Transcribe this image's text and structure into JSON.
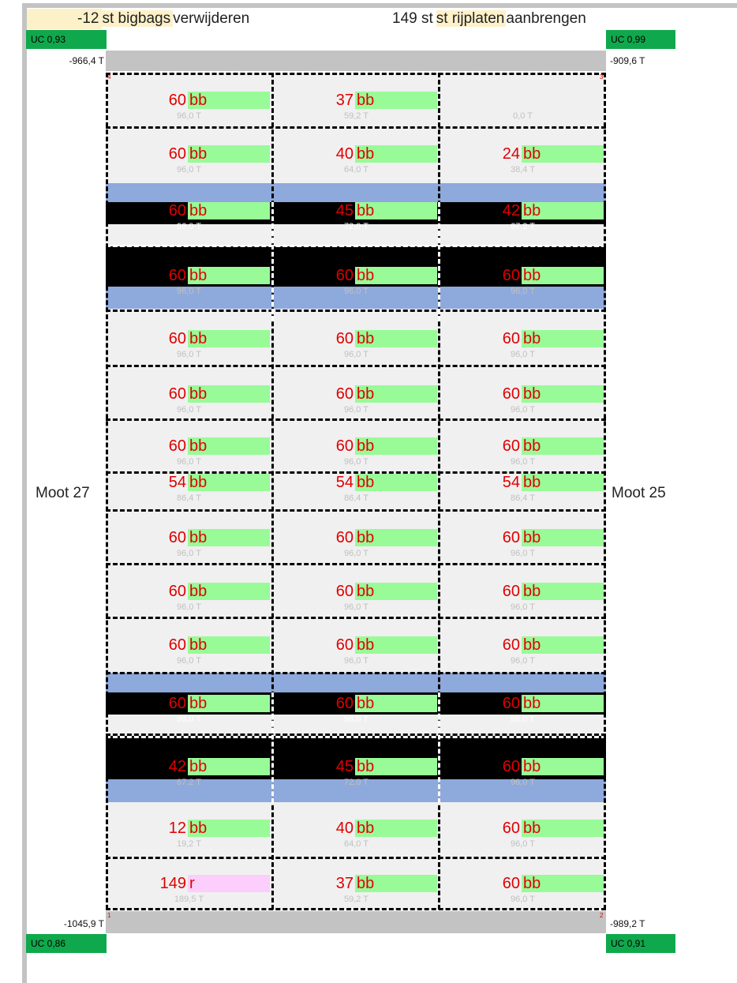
{
  "header": {
    "left_count": "-12",
    "left_text": "st bigbags",
    "left_suffix": "verwijderen",
    "right_count": "149 st",
    "right_text": "st rijplaten",
    "right_suffix": "aanbrengen"
  },
  "uc": {
    "top_left": "UC 0,93",
    "top_right": "UC 0,99",
    "bottom_left": "UC 0,86",
    "bottom_right": "UC 0,91"
  },
  "tonnage": {
    "top_left": "-966,4 T",
    "top_right": "-909,6 T",
    "bottom_left": "-1045,9 T",
    "bottom_right": "-989,2 T"
  },
  "moot": {
    "left": "Moot 27",
    "right": "Moot 25"
  },
  "corners": {
    "top_left": "4",
    "top_right": "3",
    "bottom_left": "1",
    "bottom_right": "2"
  },
  "colors": {
    "uc_green": "#10a84c",
    "bag_green": "#98fb98",
    "plate_pink": "#fccefc",
    "beam_blue": "#8ea9db",
    "count_red": "#e00000"
  },
  "rows": [
    {
      "cells": [
        {
          "count": "60",
          "unit": "bb",
          "weight": "96,0 T"
        },
        {
          "count": "37",
          "unit": "bb",
          "weight": "59,2 T"
        },
        {
          "count": "",
          "unit": "",
          "weight": "0,0 T"
        }
      ]
    },
    {
      "cells": [
        {
          "count": "60",
          "unit": "bb",
          "weight": "96,0 T"
        },
        {
          "count": "40",
          "unit": "bb",
          "weight": "64,0 T"
        },
        {
          "count": "24",
          "unit": "bb",
          "weight": "38,4 T"
        }
      ]
    },
    {
      "cells": [
        {
          "count": "60",
          "unit": "bb",
          "weight": "96,0 T"
        },
        {
          "count": "45",
          "unit": "bb",
          "weight": "72,0 T"
        },
        {
          "count": "42",
          "unit": "bb",
          "weight": "67,2 T"
        }
      ]
    },
    {
      "cells": [
        {
          "count": "60",
          "unit": "bb",
          "weight": "96,0 T"
        },
        {
          "count": "60",
          "unit": "bb",
          "weight": "96,0 T"
        },
        {
          "count": "60",
          "unit": "bb",
          "weight": "96,0 T"
        }
      ]
    },
    {
      "cells": [
        {
          "count": "60",
          "unit": "bb",
          "weight": "96,0 T"
        },
        {
          "count": "60",
          "unit": "bb",
          "weight": "96,0 T"
        },
        {
          "count": "60",
          "unit": "bb",
          "weight": "96,0 T"
        }
      ]
    },
    {
      "cells": [
        {
          "count": "60",
          "unit": "bb",
          "weight": "96,0 T"
        },
        {
          "count": "60",
          "unit": "bb",
          "weight": "96,0 T"
        },
        {
          "count": "60",
          "unit": "bb",
          "weight": "96,0 T"
        }
      ]
    },
    {
      "cells": [
        {
          "count": "60",
          "unit": "bb",
          "weight": "96,0 T"
        },
        {
          "count": "60",
          "unit": "bb",
          "weight": "96,0 T"
        },
        {
          "count": "60",
          "unit": "bb",
          "weight": "96,0 T"
        }
      ]
    },
    {
      "cells": [
        {
          "count": "54",
          "unit": "bb",
          "weight": "86,4 T"
        },
        {
          "count": "54",
          "unit": "bb",
          "weight": "86,4 T"
        },
        {
          "count": "54",
          "unit": "bb",
          "weight": "86,4 T"
        }
      ]
    },
    {
      "cells": [
        {
          "count": "60",
          "unit": "bb",
          "weight": "96,0 T"
        },
        {
          "count": "60",
          "unit": "bb",
          "weight": "96,0 T"
        },
        {
          "count": "60",
          "unit": "bb",
          "weight": "96,0 T"
        }
      ]
    },
    {
      "cells": [
        {
          "count": "60",
          "unit": "bb",
          "weight": "96,0 T"
        },
        {
          "count": "60",
          "unit": "bb",
          "weight": "96,0 T"
        },
        {
          "count": "60",
          "unit": "bb",
          "weight": "96,0 T"
        }
      ]
    },
    {
      "cells": [
        {
          "count": "60",
          "unit": "bb",
          "weight": "96,0 T"
        },
        {
          "count": "60",
          "unit": "bb",
          "weight": "96,0 T"
        },
        {
          "count": "60",
          "unit": "bb",
          "weight": "96,0 T"
        }
      ]
    },
    {
      "cells": [
        {
          "count": "60",
          "unit": "bb",
          "weight": "96,0 T"
        },
        {
          "count": "60",
          "unit": "bb",
          "weight": "96,0 T"
        },
        {
          "count": "60",
          "unit": "bb",
          "weight": "96,0 T"
        }
      ]
    },
    {
      "cells": [
        {
          "count": "42",
          "unit": "bb",
          "weight": "67,2 T"
        },
        {
          "count": "45",
          "unit": "bb",
          "weight": "72,0 T"
        },
        {
          "count": "60",
          "unit": "bb",
          "weight": "96,0 T"
        }
      ]
    },
    {
      "cells": [
        {
          "count": "12",
          "unit": "bb",
          "weight": "19,2 T"
        },
        {
          "count": "40",
          "unit": "bb",
          "weight": "64,0 T"
        },
        {
          "count": "60",
          "unit": "bb",
          "weight": "96,0 T"
        }
      ]
    },
    {
      "cells": [
        {
          "count": "149",
          "unit": "r",
          "weight": "189,5 T",
          "pink": true
        },
        {
          "count": "37",
          "unit": "bb",
          "weight": "59,2 T"
        },
        {
          "count": "60",
          "unit": "bb",
          "weight": "96,0 T"
        }
      ]
    }
  ]
}
